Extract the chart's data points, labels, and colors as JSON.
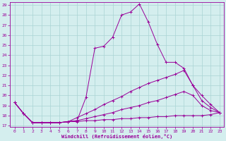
{
  "xlabel": "Windchill (Refroidissement éolien,°C)",
  "bg_color": "#d4eeee",
  "grid_color": "#aad4d4",
  "line_color": "#990099",
  "xlim": [
    -0.5,
    23.5
  ],
  "ylim": [
    17,
    29
  ],
  "yticks": [
    17,
    18,
    19,
    20,
    21,
    22,
    23,
    24,
    25,
    26,
    27,
    28,
    29
  ],
  "xticks": [
    0,
    1,
    2,
    3,
    4,
    5,
    6,
    7,
    8,
    9,
    10,
    11,
    12,
    13,
    14,
    15,
    16,
    17,
    18,
    19,
    20,
    21,
    22,
    23
  ],
  "series": [
    {
      "x": [
        0,
        1,
        2,
        3,
        4,
        5,
        6,
        7,
        8,
        9,
        10,
        11,
        12,
        13,
        14,
        15,
        16,
        17,
        18,
        19,
        20,
        21,
        22,
        23
      ],
      "y": [
        19.3,
        18.2,
        17.3,
        17.3,
        17.3,
        17.3,
        17.4,
        17.5,
        19.8,
        24.7,
        24.9,
        25.8,
        28.0,
        28.3,
        29.1,
        27.3,
        25.1,
        23.3,
        23.3,
        22.7,
        21.0,
        20.0,
        19.1,
        18.3
      ]
    },
    {
      "x": [
        0,
        1,
        2,
        3,
        4,
        5,
        6,
        7,
        8,
        9,
        10,
        11,
        12,
        13,
        14,
        15,
        16,
        17,
        18,
        19,
        20,
        21,
        22,
        23
      ],
      "y": [
        19.3,
        18.2,
        17.3,
        17.3,
        17.3,
        17.3,
        17.4,
        17.8,
        18.2,
        18.6,
        19.1,
        19.5,
        19.9,
        20.4,
        20.8,
        21.2,
        21.5,
        21.8,
        22.1,
        22.5,
        21.0,
        19.5,
        18.8,
        18.3
      ]
    },
    {
      "x": [
        0,
        1,
        2,
        3,
        4,
        5,
        6,
        7,
        8,
        9,
        10,
        11,
        12,
        13,
        14,
        15,
        16,
        17,
        18,
        19,
        20,
        21,
        22,
        23
      ],
      "y": [
        19.3,
        18.2,
        17.3,
        17.3,
        17.3,
        17.3,
        17.4,
        17.5,
        17.7,
        17.9,
        18.1,
        18.3,
        18.6,
        18.8,
        19.0,
        19.3,
        19.5,
        19.8,
        20.1,
        20.4,
        20.0,
        19.0,
        18.5,
        18.3
      ]
    },
    {
      "x": [
        0,
        1,
        2,
        3,
        4,
        5,
        6,
        7,
        8,
        9,
        10,
        11,
        12,
        13,
        14,
        15,
        16,
        17,
        18,
        19,
        20,
        21,
        22,
        23
      ],
      "y": [
        19.3,
        18.2,
        17.3,
        17.3,
        17.3,
        17.3,
        17.4,
        17.4,
        17.5,
        17.5,
        17.6,
        17.6,
        17.7,
        17.7,
        17.8,
        17.8,
        17.9,
        17.9,
        18.0,
        18.0,
        18.0,
        18.0,
        18.1,
        18.3
      ]
    }
  ]
}
